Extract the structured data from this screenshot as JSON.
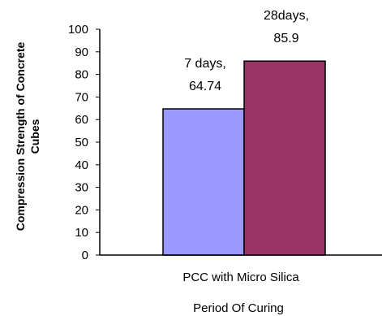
{
  "chart_data": {
    "type": "bar",
    "title": "",
    "xlabel": "Period Of Curing",
    "ylabel_lines": [
      "Compression Strength of Concrete",
      "Cubes"
    ],
    "category": "PCC with Micro Silica",
    "ylim": [
      0,
      100
    ],
    "yticks": [
      0,
      10,
      20,
      30,
      40,
      50,
      60,
      70,
      80,
      90,
      100
    ],
    "grid": false,
    "legend": "none",
    "series": [
      {
        "values": [
          64.74
        ],
        "color": "#9999ff",
        "label_lines": [
          "7 days,",
          "64.74"
        ]
      },
      {
        "values": [
          85.9
        ],
        "color": "#993366",
        "label_lines": [
          "28days,",
          "85.9"
        ]
      }
    ]
  }
}
